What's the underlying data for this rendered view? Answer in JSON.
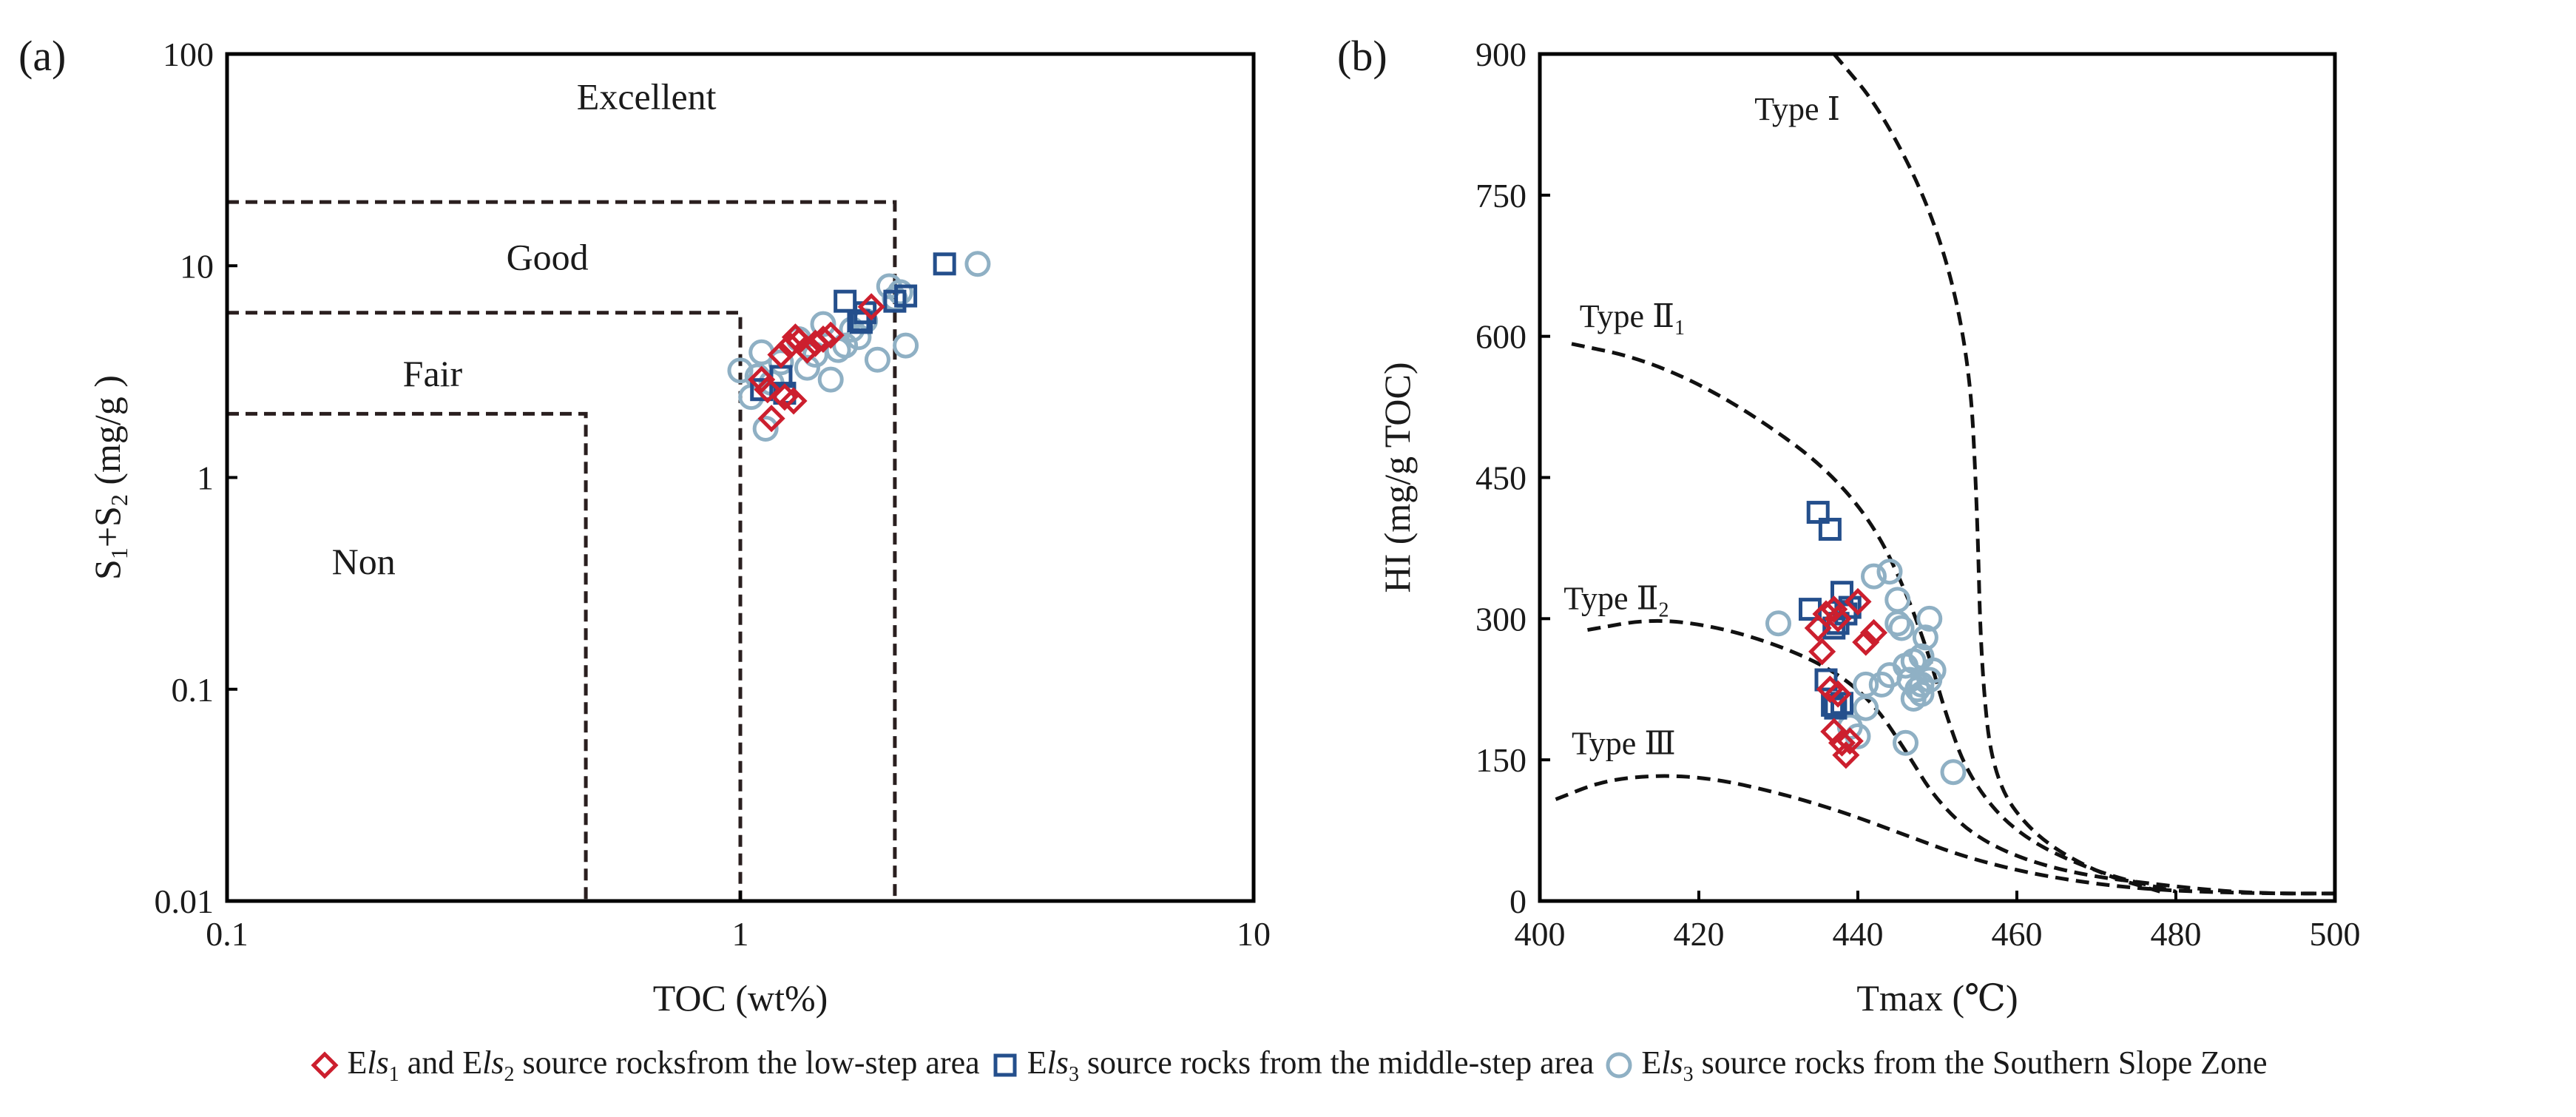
{
  "figure": {
    "panel_a_letter": "(a)",
    "panel_b_letter": "(b)",
    "legend": [
      {
        "key": "low",
        "prefix": "E",
        "italic": "ls",
        "sub": "1",
        "mid": " and E",
        "italic2": "ls",
        "sub2": "2",
        "rest": " source rocksfrom the low-step area"
      },
      {
        "key": "mid",
        "prefix": "E",
        "italic": "ls",
        "sub": "3",
        "rest": " source rocks from the middle-step area"
      },
      {
        "key": "south",
        "prefix": "E",
        "italic": "ls",
        "sub": "3",
        "rest": " source rocks from the Southern Slope Zone"
      }
    ]
  },
  "colors": {
    "low": "#cc1f2e",
    "mid": "#244f8c",
    "south": "#8fb0c4",
    "axis": "#000000",
    "dash": "#2a1f1f"
  },
  "chart_data": [
    {
      "id": "a",
      "type": "scatter",
      "xscale": "log",
      "yscale": "log",
      "xlabel": "TOC (wt%)",
      "ylabel_main": "S",
      "ylabel_sub1": "1",
      "ylabel_plus": "+S",
      "ylabel_sub2": "2",
      "ylabel_unit": " (mg/g )",
      "xlim": [
        0.1,
        10
      ],
      "ylim": [
        0.01,
        100
      ],
      "xticks": [
        {
          "v": 0.1,
          "label": "0.1"
        },
        {
          "v": 1,
          "label": "1"
        },
        {
          "v": 10,
          "label": "10"
        }
      ],
      "yticks": [
        {
          "v": 0.01,
          "label": "0.01"
        },
        {
          "v": 0.1,
          "label": "0.1"
        },
        {
          "v": 1,
          "label": "1"
        },
        {
          "v": 10,
          "label": "10"
        },
        {
          "v": 100,
          "label": "100"
        }
      ],
      "regions": [
        {
          "name": "Non",
          "toc": 0.5,
          "s": 2,
          "label": "Non",
          "lx": 0.16,
          "ly": 0.35
        },
        {
          "name": "Fair",
          "toc": 1,
          "s": 6,
          "label": "Fair",
          "lx": 0.22,
          "ly": 2.7
        },
        {
          "name": "Good",
          "toc": 2,
          "s": 20,
          "label": "Good",
          "lx": 0.35,
          "ly": 9.6
        },
        {
          "name": "Excellent",
          "label": "Excellent",
          "lx": 0.48,
          "ly": 55
        }
      ],
      "series": [
        {
          "key": "low",
          "name": "Els1 and Els2 low-step",
          "marker": "diamond",
          "x": [
            1.1,
            1.15,
            1.2,
            1.25,
            1.28,
            1.3,
            1.35,
            1.4,
            1.45,
            1.5,
            1.22,
            1.8,
            1.13,
            1.27
          ],
          "y": [
            2.9,
            1.9,
            3.8,
            4.2,
            4.6,
            4.4,
            4.0,
            4.3,
            4.5,
            4.7,
            2.4,
            6.4,
            2.6,
            2.3
          ]
        },
        {
          "key": "mid",
          "name": "Els3 middle-step",
          "marker": "square",
          "x": [
            1.1,
            1.2,
            1.22,
            1.6,
            1.7,
            1.75,
            1.72,
            2.0,
            2.1,
            2.5
          ],
          "y": [
            2.6,
            3.0,
            2.5,
            6.8,
            5.5,
            6.0,
            5.4,
            6.8,
            7.2,
            10.2
          ]
        },
        {
          "key": "south",
          "name": "Els3 Southern Slope Zone",
          "marker": "circle",
          "x": [
            1.0,
            1.05,
            1.1,
            1.12,
            1.15,
            1.2,
            1.3,
            1.4,
            1.45,
            1.5,
            1.55,
            1.6,
            1.7,
            1.75,
            1.85,
            1.95,
            2.0,
            2.05,
            2.1,
            2.9,
            1.08,
            1.35,
            1.65
          ],
          "y": [
            3.2,
            2.4,
            3.9,
            1.7,
            2.8,
            3.5,
            4.5,
            3.8,
            5.3,
            2.9,
            4.0,
            4.2,
            4.6,
            5.5,
            3.6,
            8.0,
            7.0,
            7.5,
            4.2,
            10.2,
            3.0,
            3.3,
            5.0
          ]
        }
      ]
    },
    {
      "id": "b",
      "type": "scatter",
      "xlabel": "Tmax (℃)",
      "ylabel": "HI (mg/g TOC)",
      "xlim": [
        400,
        500
      ],
      "ylim": [
        0,
        900
      ],
      "xticks": [
        {
          "v": 400,
          "label": "400"
        },
        {
          "v": 420,
          "label": "420"
        },
        {
          "v": 440,
          "label": "440"
        },
        {
          "v": 460,
          "label": "460"
        },
        {
          "v": 480,
          "label": "480"
        },
        {
          "v": 500,
          "label": "500"
        }
      ],
      "yticks": [
        {
          "v": 0,
          "label": "0"
        },
        {
          "v": 150,
          "label": "150"
        },
        {
          "v": 300,
          "label": "300"
        },
        {
          "v": 450,
          "label": "450"
        },
        {
          "v": 600,
          "label": "600"
        },
        {
          "v": 750,
          "label": "750"
        },
        {
          "v": 900,
          "label": "900"
        }
      ],
      "curves": [
        {
          "name": "Type I",
          "label": "Type Ⅰ",
          "sub": "",
          "lx": 427,
          "ly": 830,
          "points": [
            [
              437,
              900
            ],
            [
              443,
              840
            ],
            [
              450,
              720
            ],
            [
              454,
              580
            ],
            [
              455,
              420
            ],
            [
              455.5,
              250
            ],
            [
              457,
              130
            ],
            [
              462,
              70
            ],
            [
              470,
              30
            ],
            [
              478,
              10
            ]
          ]
        },
        {
          "name": "Type II1",
          "label": "Type Ⅱ",
          "sub": "1",
          "lx": 405,
          "ly": 610,
          "points": [
            [
              404,
              592
            ],
            [
              412,
              578
            ],
            [
              420,
              550
            ],
            [
              428,
              510
            ],
            [
              436,
              460
            ],
            [
              442,
              400
            ],
            [
              446,
              330
            ],
            [
              449,
              260
            ],
            [
              451,
              200
            ],
            [
              454,
              130
            ],
            [
              460,
              70
            ],
            [
              470,
              30
            ],
            [
              480,
              10
            ]
          ]
        },
        {
          "name": "Type II2",
          "label": "Type Ⅱ",
          "sub": "2",
          "lx": 403,
          "ly": 310,
          "points": [
            [
              406,
              288
            ],
            [
              414,
              300
            ],
            [
              422,
              292
            ],
            [
              430,
              272
            ],
            [
              437,
              245
            ],
            [
              442,
              210
            ],
            [
              446,
              160
            ],
            [
              450,
              105
            ],
            [
              456,
              60
            ],
            [
              466,
              30
            ],
            [
              480,
              15
            ],
            [
              490,
              8
            ],
            [
              500,
              8
            ]
          ]
        },
        {
          "name": "Type III",
          "label": "Type Ⅲ",
          "sub": "",
          "lx": 404,
          "ly": 156,
          "points": [
            [
              402,
              108
            ],
            [
              408,
              128
            ],
            [
              415,
              134
            ],
            [
              422,
              130
            ],
            [
              430,
              115
            ],
            [
              438,
              95
            ],
            [
              446,
              70
            ],
            [
              454,
              45
            ],
            [
              464,
              25
            ],
            [
              476,
              12
            ],
            [
              490,
              8
            ],
            [
              500,
              8
            ]
          ]
        }
      ],
      "series": [
        {
          "key": "low",
          "name": "Els1 and Els2 low-step",
          "marker": "diamond",
          "x": [
            435,
            435.5,
            436,
            436.5,
            437,
            437.5,
            438,
            438.5,
            439,
            441,
            442,
            437,
            437.5,
            440
          ],
          "y": [
            290,
            265,
            305,
            225,
            310,
            300,
            168,
            155,
            170,
            275,
            285,
            180,
            220,
            318
          ]
        },
        {
          "key": "mid",
          "name": "Els3 middle-step",
          "marker": "square",
          "x": [
            435,
            436.5,
            434,
            438,
            438.5,
            439,
            437,
            437.5,
            436,
            436.8,
            438,
            437.2
          ],
          "y": [
            413,
            395,
            310,
            328,
            305,
            312,
            290,
            295,
            235,
            208,
            210,
            205
          ]
        },
        {
          "key": "south",
          "name": "Els3 Southern Slope Zone",
          "marker": "circle",
          "x": [
            430,
            439,
            440,
            441,
            442,
            443,
            444,
            445,
            445.5,
            446,
            446.5,
            447,
            447.5,
            448,
            448.5,
            449,
            449.5,
            445,
            446,
            448,
            452,
            441,
            444,
            447,
            448,
            449
          ],
          "y": [
            295,
            185,
            175,
            230,
            345,
            230,
            350,
            320,
            290,
            250,
            235,
            215,
            225,
            230,
            280,
            300,
            245,
            295,
            168,
            260,
            137,
            205,
            240,
            255,
            220,
            235
          ]
        }
      ]
    }
  ]
}
